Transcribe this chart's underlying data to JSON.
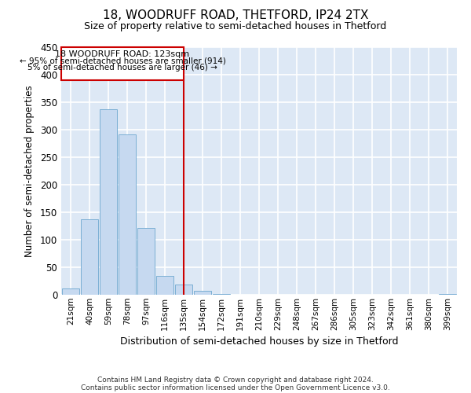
{
  "title_line1": "18, WOODRUFF ROAD, THETFORD, IP24 2TX",
  "title_line2": "Size of property relative to semi-detached houses in Thetford",
  "xlabel": "Distribution of semi-detached houses by size in Thetford",
  "ylabel": "Number of semi-detached properties",
  "footnote_line1": "Contains HM Land Registry data © Crown copyright and database right 2024.",
  "footnote_line2": "Contains public sector information licensed under the Open Government Licence v3.0.",
  "bar_labels": [
    "21sqm",
    "40sqm",
    "59sqm",
    "78sqm",
    "97sqm",
    "116sqm",
    "135sqm",
    "154sqm",
    "172sqm",
    "191sqm",
    "210sqm",
    "229sqm",
    "248sqm",
    "267sqm",
    "286sqm",
    "305sqm",
    "323sqm",
    "342sqm",
    "361sqm",
    "380sqm",
    "399sqm"
  ],
  "bar_values": [
    11,
    137,
    337,
    292,
    122,
    35,
    18,
    7,
    1,
    0,
    0,
    0,
    0,
    0,
    0,
    0,
    0,
    0,
    0,
    0,
    2
  ],
  "bar_color": "#c6d9f0",
  "bar_edge_color": "#7bafd4",
  "vline_x": 6.0,
  "vline_color": "#cc0000",
  "vline_label": "18 WOODRUFF ROAD: 123sqm",
  "pct_smaller": "← 95% of semi-detached houses are smaller (914)",
  "pct_larger": "5% of semi-detached houses are larger (46) →",
  "annotation_box_color": "#cc0000",
  "ylim": [
    0,
    450
  ],
  "yticks": [
    0,
    50,
    100,
    150,
    200,
    250,
    300,
    350,
    400,
    450
  ],
  "bg_color": "#dde8f5",
  "grid_color": "#ffffff",
  "fig_bg": "#ffffff"
}
